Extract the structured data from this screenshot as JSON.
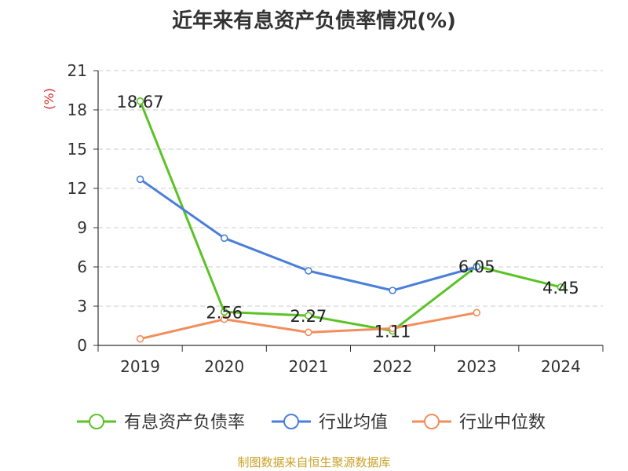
{
  "title": "近年来有息资产负债率情况(%)",
  "footer": "制图数据来自恒生聚源数据库",
  "chart_data": {
    "type": "line",
    "title": "近年来有息资产负债率情况(%)",
    "ylabel": "(%)",
    "categories": [
      "2019",
      "2020",
      "2021",
      "2022",
      "2023",
      "2024"
    ],
    "ylim": [
      0,
      21
    ],
    "yticks": [
      0,
      3,
      6,
      9,
      12,
      15,
      18,
      21
    ],
    "grid": true,
    "legend_position": "bottom",
    "series": [
      {
        "name": "有息资产负债率",
        "color": "#5bc227",
        "values": [
          18.67,
          2.56,
          2.27,
          1.11,
          6.05,
          4.45
        ],
        "labels": [
          "18.67",
          "2.56",
          "2.27",
          "1.11",
          "6.05",
          "4.45"
        ]
      },
      {
        "name": "行业均值",
        "color": "#4a7fd9",
        "values": [
          12.7,
          8.2,
          5.7,
          4.2,
          6.0,
          null
        ]
      },
      {
        "name": "行业中位数",
        "color": "#f28e5c",
        "values": [
          0.5,
          2.0,
          1.0,
          1.3,
          2.5,
          null
        ]
      }
    ]
  }
}
